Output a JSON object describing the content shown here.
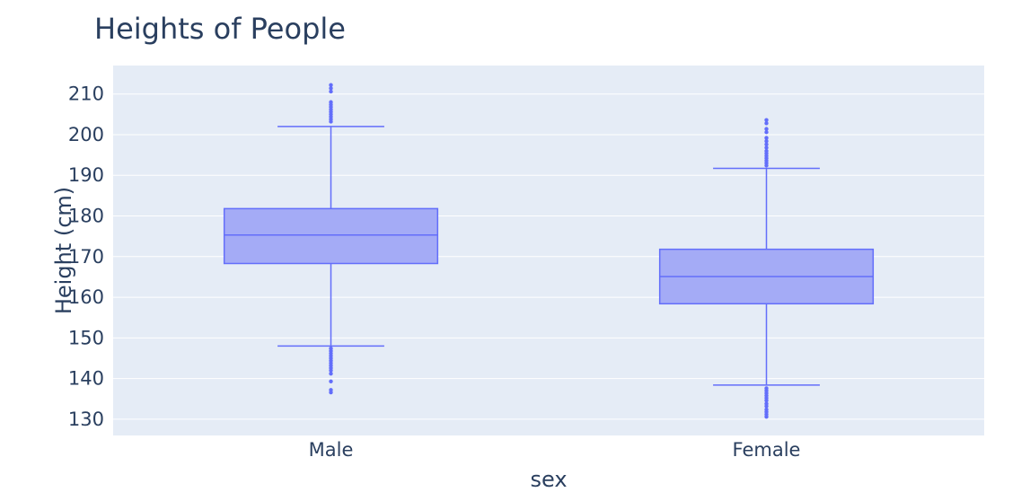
{
  "chart_data": {
    "type": "box",
    "title": "Heights of People",
    "xlabel": "sex",
    "ylabel": "Height (cm)",
    "categories": [
      "Male",
      "Female"
    ],
    "ylim": [
      126,
      217
    ],
    "yticks": [
      130,
      140,
      150,
      160,
      170,
      180,
      190,
      200,
      210
    ],
    "grid": true,
    "legend": "none",
    "colors": {
      "box_fill": "#a4abf6",
      "box_line": "#636efa",
      "plot_bg": "#e5ecf6",
      "grid": "#ffffff",
      "text": "#2a3f5f"
    },
    "boxes": [
      {
        "category": "Male",
        "min": 148,
        "q1": 168.3,
        "median": 175.3,
        "q3": 181.8,
        "max": 202,
        "outliers": [
          136.6,
          137.2,
          139.3,
          141.2,
          142.0,
          142.6,
          143.2,
          143.8,
          144.4,
          145.0,
          145.6,
          146.2,
          146.8,
          147.4,
          203.2,
          203.8,
          204.4,
          205.0,
          205.6,
          206.2,
          206.8,
          207.4,
          208.0,
          210.6,
          211.4,
          212.2
        ]
      },
      {
        "category": "Female",
        "min": 138.4,
        "q1": 158.4,
        "median": 165.1,
        "q3": 171.8,
        "max": 191.7,
        "outliers": [
          130.6,
          131.2,
          131.8,
          132.4,
          133.2,
          133.8,
          134.6,
          135.2,
          135.8,
          136.4,
          137.0,
          137.6,
          192.4,
          193.0,
          193.6,
          194.2,
          194.8,
          195.4,
          196.0,
          196.8,
          197.6,
          198.4,
          199.2,
          200.6,
          201.4,
          202.8,
          203.6
        ]
      }
    ]
  }
}
